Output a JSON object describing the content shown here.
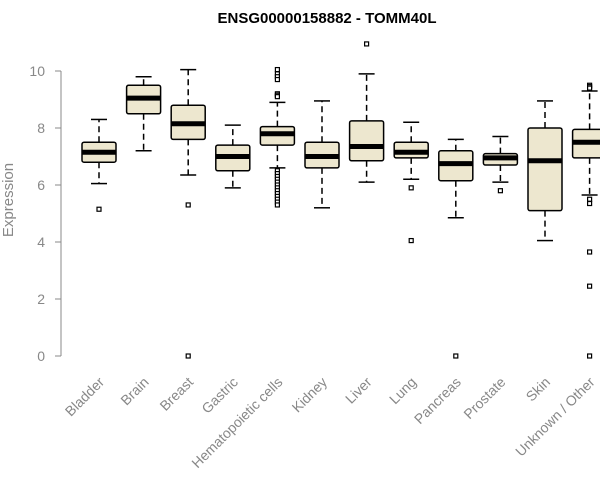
{
  "chart_data": {
    "type": "boxplot",
    "title": "ENSG00000158882 - TOMM40L",
    "ylabel": "Expression",
    "xlabel": "",
    "ylim": [
      0,
      10.5
    ],
    "yticks": [
      0,
      2,
      4,
      6,
      8,
      10
    ],
    "colors": {
      "box_fill": "#ede7cf",
      "stroke": "#000000",
      "axis": "#888888"
    },
    "categories": [
      "Bladder",
      "Brain",
      "Breast",
      "Gastric",
      "Hematopoietic cells",
      "Kidney",
      "Liver",
      "Lung",
      "Pancreas",
      "Prostate",
      "Skin",
      "Unknown / Other"
    ],
    "boxes": [
      {
        "category": "Bladder",
        "whisker_low": 6.05,
        "q1": 6.8,
        "median": 7.15,
        "q3": 7.5,
        "whisker_high": 8.3,
        "outliers": [
          5.15
        ]
      },
      {
        "category": "Brain",
        "whisker_low": 7.2,
        "q1": 8.5,
        "median": 9.05,
        "q3": 9.5,
        "whisker_high": 9.8,
        "outliers": []
      },
      {
        "category": "Breast",
        "whisker_low": 6.35,
        "q1": 7.6,
        "median": 8.15,
        "q3": 8.8,
        "whisker_high": 10.05,
        "outliers": [
          5.3,
          0.0
        ]
      },
      {
        "category": "Gastric",
        "whisker_low": 5.9,
        "q1": 6.5,
        "median": 7.0,
        "q3": 7.4,
        "whisker_high": 8.1,
        "outliers": []
      },
      {
        "category": "Hematopoietic cells",
        "whisker_low": 6.6,
        "q1": 7.4,
        "median": 7.8,
        "q3": 8.05,
        "whisker_high": 8.9,
        "outliers": [
          10.05,
          9.9,
          9.8,
          9.7,
          9.2,
          9.15,
          9.1,
          6.5,
          6.4,
          6.3,
          6.2,
          6.1,
          6.0,
          5.9,
          5.8,
          5.7,
          5.6,
          5.5,
          5.4,
          5.3
        ]
      },
      {
        "category": "Kidney",
        "whisker_low": 5.2,
        "q1": 6.6,
        "median": 7.0,
        "q3": 7.5,
        "whisker_high": 8.95,
        "outliers": []
      },
      {
        "category": "Liver",
        "whisker_low": 6.1,
        "q1": 6.85,
        "median": 7.35,
        "q3": 8.25,
        "whisker_high": 9.9,
        "outliers": [
          10.95
        ]
      },
      {
        "category": "Lung",
        "whisker_low": 6.2,
        "q1": 6.95,
        "median": 7.15,
        "q3": 7.5,
        "whisker_high": 8.2,
        "outliers": [
          5.9,
          4.05
        ]
      },
      {
        "category": "Pancreas",
        "whisker_low": 4.85,
        "q1": 6.15,
        "median": 6.75,
        "q3": 7.2,
        "whisker_high": 7.6,
        "outliers": [
          0.0
        ]
      },
      {
        "category": "Prostate",
        "whisker_low": 6.1,
        "q1": 6.7,
        "median": 6.95,
        "q3": 7.1,
        "whisker_high": 7.7,
        "outliers": [
          5.8
        ]
      },
      {
        "category": "Skin",
        "whisker_low": 4.05,
        "q1": 5.1,
        "median": 6.85,
        "q3": 8.0,
        "whisker_high": 8.95,
        "outliers": []
      },
      {
        "category": "Unknown / Other",
        "whisker_low": 5.65,
        "q1": 6.95,
        "median": 7.5,
        "q3": 7.95,
        "whisker_high": 9.3,
        "outliers": [
          9.5,
          9.45,
          9.4,
          5.5,
          5.35,
          3.65,
          2.45,
          0.0
        ]
      }
    ]
  }
}
